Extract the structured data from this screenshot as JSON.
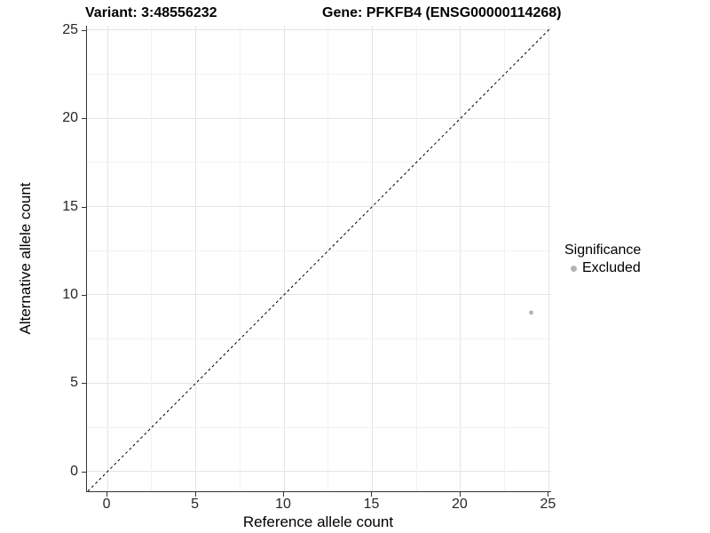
{
  "header": {
    "variant_title": "Variant: 3:48556232",
    "gene_title": "Gene: PFKFB4 (ENSG00000114268)"
  },
  "legend": {
    "title": "Significance",
    "items": [
      {
        "label": "Excluded",
        "marker": "circle",
        "color": "#b4b4b4"
      }
    ]
  },
  "colors": {
    "grid_major": "#e4e4e4",
    "grid_minor": "#f1f1f1",
    "axis_line": "#333333",
    "tick_text": "#262626",
    "reference_line": "#000000",
    "point": "#b4b4b4"
  },
  "chart_data": {
    "type": "scatter",
    "title_left": "Variant: 3:48556232",
    "title_right": "Gene: PFKFB4 (ENSG00000114268)",
    "xlabel": "Reference allele count",
    "ylabel": "Alternative allele count",
    "x_ticks": [
      0,
      5,
      10,
      15,
      20,
      25
    ],
    "y_ticks": [
      0,
      5,
      10,
      15,
      20,
      25
    ],
    "x_minor_ticks": [
      2.5,
      7.5,
      12.5,
      17.5,
      22.5
    ],
    "y_minor_ticks": [
      2.5,
      7.5,
      12.5,
      17.5,
      22.5
    ],
    "x_range": [
      -1.16,
      25.13
    ],
    "y_range": [
      -1.11,
      25.23
    ],
    "xlim": [
      0,
      25
    ],
    "ylim": [
      0,
      25
    ],
    "grid": true,
    "legend_position": "right",
    "legend_title": "Significance",
    "series": [
      {
        "name": "Excluded",
        "color": "#b4b4b4",
        "marker": "circle",
        "marker_radius_px": 2.4,
        "points": [
          {
            "x": 24,
            "y": 9
          }
        ]
      }
    ],
    "reference_line": {
      "kind": "identity",
      "slope": 1,
      "intercept": 0,
      "style": "dashed",
      "color": "#000000"
    }
  }
}
